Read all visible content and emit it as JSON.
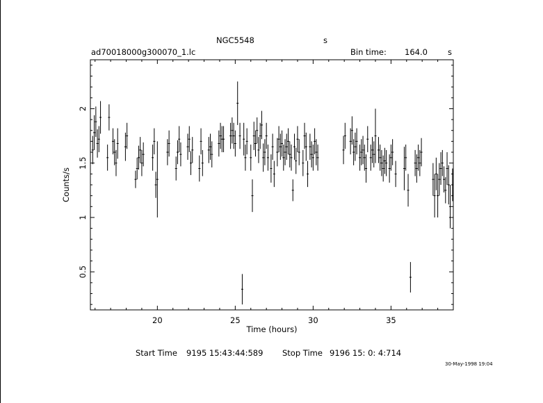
{
  "header": {
    "object_name": "NGC5548",
    "object_suffix": "s",
    "file_name": "ad70018000g300070_1.lc",
    "bin_label": "Bin time:",
    "bin_value": "164.0",
    "bin_unit": "s"
  },
  "footer": {
    "start_label": "Start Time",
    "start_value": "9195 15:43:44:589",
    "stop_label": "Stop Time",
    "stop_value": "9196 15: 0: 4:714",
    "plot_date": "30-May-1998 19:04"
  },
  "chart_data": {
    "type": "scatter",
    "title": "",
    "xlabel": "Time (hours)",
    "ylabel": "Counts/s",
    "xlim": [
      15.7,
      39.0
    ],
    "ylim": [
      0.15,
      2.45
    ],
    "xticks": [
      20,
      25,
      30,
      35
    ],
    "yticks": [
      0.5,
      1,
      1.5,
      2
    ],
    "grid": false,
    "legend": "none",
    "colors": {
      "data": "#000000",
      "background": "#ffffff"
    },
    "series": [
      {
        "points": [
          [
            15.85,
            1.62,
            0.13
          ],
          [
            15.95,
            1.78,
            0.16
          ],
          [
            16.05,
            1.88,
            0.14
          ],
          [
            16.15,
            1.68,
            0.13
          ],
          [
            16.25,
            1.72,
            0.12
          ],
          [
            16.35,
            1.92,
            0.15
          ],
          [
            16.8,
            1.55,
            0.12
          ],
          [
            16.9,
            1.92,
            0.12
          ],
          [
            17.15,
            1.7,
            0.12
          ],
          [
            17.25,
            1.6,
            0.12
          ],
          [
            17.35,
            1.5,
            0.12
          ],
          [
            17.45,
            1.68,
            0.14
          ],
          [
            17.95,
            1.65,
            0.13
          ],
          [
            18.05,
            1.75,
            0.12
          ],
          [
            18.6,
            1.35,
            0.08
          ],
          [
            18.7,
            1.45,
            0.1
          ],
          [
            18.8,
            1.55,
            0.11
          ],
          [
            18.9,
            1.62,
            0.12
          ],
          [
            19.0,
            1.5,
            0.12
          ],
          [
            19.1,
            1.58,
            0.11
          ],
          [
            19.7,
            1.55,
            0.12
          ],
          [
            19.8,
            1.7,
            0.12
          ],
          [
            19.9,
            1.3,
            0.12
          ],
          [
            20.0,
            1.35,
            0.35
          ],
          [
            20.65,
            1.6,
            0.12
          ],
          [
            20.75,
            1.68,
            0.12
          ],
          [
            21.2,
            1.45,
            0.11
          ],
          [
            21.3,
            1.6,
            0.11
          ],
          [
            21.4,
            1.72,
            0.12
          ],
          [
            21.5,
            1.58,
            0.11
          ],
          [
            21.95,
            1.65,
            0.12
          ],
          [
            22.05,
            1.72,
            0.12
          ],
          [
            22.15,
            1.5,
            0.11
          ],
          [
            22.25,
            1.62,
            0.12
          ],
          [
            22.7,
            1.45,
            0.12
          ],
          [
            22.8,
            1.7,
            0.12
          ],
          [
            22.9,
            1.5,
            0.12
          ],
          [
            23.3,
            1.62,
            0.12
          ],
          [
            23.4,
            1.65,
            0.12
          ],
          [
            23.5,
            1.58,
            0.12
          ],
          [
            23.95,
            1.68,
            0.12
          ],
          [
            24.05,
            1.75,
            0.12
          ],
          [
            24.15,
            1.72,
            0.12
          ],
          [
            24.25,
            1.72,
            0.12
          ],
          [
            24.7,
            1.75,
            0.12
          ],
          [
            24.8,
            1.8,
            0.12
          ],
          [
            24.9,
            1.75,
            0.12
          ],
          [
            25.0,
            1.68,
            0.12
          ],
          [
            25.15,
            2.05,
            0.2
          ],
          [
            25.3,
            1.75,
            0.12
          ],
          [
            25.45,
            0.34,
            0.14
          ],
          [
            25.55,
            1.72,
            0.15
          ],
          [
            25.65,
            1.55,
            0.12
          ],
          [
            25.75,
            1.7,
            0.12
          ],
          [
            26.0,
            1.55,
            0.12
          ],
          [
            26.1,
            1.2,
            0.15
          ],
          [
            26.2,
            1.75,
            0.13
          ],
          [
            26.3,
            1.68,
            0.12
          ],
          [
            26.4,
            1.8,
            0.12
          ],
          [
            26.5,
            1.62,
            0.12
          ],
          [
            26.6,
            1.75,
            0.12
          ],
          [
            26.7,
            1.85,
            0.13
          ],
          [
            26.8,
            1.55,
            0.13
          ],
          [
            26.9,
            1.6,
            0.12
          ],
          [
            27.0,
            1.75,
            0.12
          ],
          [
            27.1,
            1.55,
            0.12
          ],
          [
            27.3,
            1.45,
            0.13
          ],
          [
            27.4,
            1.65,
            0.12
          ],
          [
            27.5,
            1.4,
            0.12
          ],
          [
            27.7,
            1.6,
            0.13
          ],
          [
            27.8,
            1.72,
            0.12
          ],
          [
            27.9,
            1.65,
            0.12
          ],
          [
            28.0,
            1.68,
            0.12
          ],
          [
            28.1,
            1.55,
            0.12
          ],
          [
            28.2,
            1.6,
            0.12
          ],
          [
            28.3,
            1.65,
            0.12
          ],
          [
            28.4,
            1.7,
            0.12
          ],
          [
            28.5,
            1.58,
            0.12
          ],
          [
            28.6,
            1.55,
            0.12
          ],
          [
            28.7,
            1.25,
            0.1
          ],
          [
            28.8,
            1.65,
            0.12
          ],
          [
            28.9,
            1.52,
            0.12
          ],
          [
            29.0,
            1.72,
            0.12
          ],
          [
            29.1,
            1.6,
            0.12
          ],
          [
            29.35,
            1.5,
            0.12
          ],
          [
            29.45,
            1.75,
            0.12
          ],
          [
            29.55,
            1.65,
            0.13
          ],
          [
            29.65,
            1.4,
            0.12
          ],
          [
            29.8,
            1.65,
            0.12
          ],
          [
            29.9,
            1.58,
            0.12
          ],
          [
            30.0,
            1.55,
            0.12
          ],
          [
            30.1,
            1.7,
            0.12
          ],
          [
            30.2,
            1.6,
            0.12
          ],
          [
            30.3,
            1.55,
            0.12
          ],
          [
            31.95,
            1.62,
            0.13
          ],
          [
            32.05,
            1.75,
            0.12
          ],
          [
            32.4,
            1.7,
            0.12
          ],
          [
            32.5,
            1.8,
            0.13
          ],
          [
            32.6,
            1.6,
            0.12
          ],
          [
            32.7,
            1.65,
            0.13
          ],
          [
            32.8,
            1.7,
            0.12
          ],
          [
            33.0,
            1.55,
            0.12
          ],
          [
            33.1,
            1.6,
            0.12
          ],
          [
            33.2,
            1.62,
            0.13
          ],
          [
            33.3,
            1.55,
            0.12
          ],
          [
            33.4,
            1.45,
            0.13
          ],
          [
            33.5,
            1.72,
            0.12
          ],
          [
            33.7,
            1.55,
            0.12
          ],
          [
            33.8,
            1.62,
            0.12
          ],
          [
            33.9,
            1.58,
            0.12
          ],
          [
            34.0,
            1.75,
            0.25
          ],
          [
            34.2,
            1.62,
            0.12
          ],
          [
            34.3,
            1.55,
            0.12
          ],
          [
            34.4,
            1.5,
            0.12
          ],
          [
            34.5,
            1.45,
            0.12
          ],
          [
            34.6,
            1.52,
            0.12
          ],
          [
            34.7,
            1.5,
            0.12
          ],
          [
            34.9,
            1.45,
            0.13
          ],
          [
            35.0,
            1.55,
            0.12
          ],
          [
            35.1,
            1.6,
            0.12
          ],
          [
            35.3,
            1.4,
            0.12
          ],
          [
            35.85,
            1.45,
            0.2
          ],
          [
            35.95,
            1.55,
            0.12
          ],
          [
            36.1,
            1.25,
            0.15
          ],
          [
            36.25,
            0.45,
            0.14
          ],
          [
            36.55,
            1.5,
            0.12
          ],
          [
            36.65,
            1.45,
            0.13
          ],
          [
            36.75,
            1.55,
            0.12
          ],
          [
            36.85,
            1.5,
            0.12
          ],
          [
            36.95,
            1.6,
            0.13
          ],
          [
            37.7,
            1.35,
            0.15
          ],
          [
            37.8,
            1.2,
            0.2
          ],
          [
            37.9,
            1.4,
            0.15
          ],
          [
            38.0,
            1.2,
            0.2
          ],
          [
            38.1,
            1.35,
            0.15
          ],
          [
            38.2,
            1.45,
            0.15
          ],
          [
            38.3,
            1.5,
            0.12
          ],
          [
            38.4,
            1.35,
            0.12
          ],
          [
            38.5,
            1.25,
            0.12
          ],
          [
            38.6,
            1.45,
            0.15
          ],
          [
            38.7,
            1.3,
            0.18
          ],
          [
            38.8,
            1.1,
            0.2
          ],
          [
            38.95,
            1.3,
            0.15
          ]
        ]
      }
    ]
  }
}
